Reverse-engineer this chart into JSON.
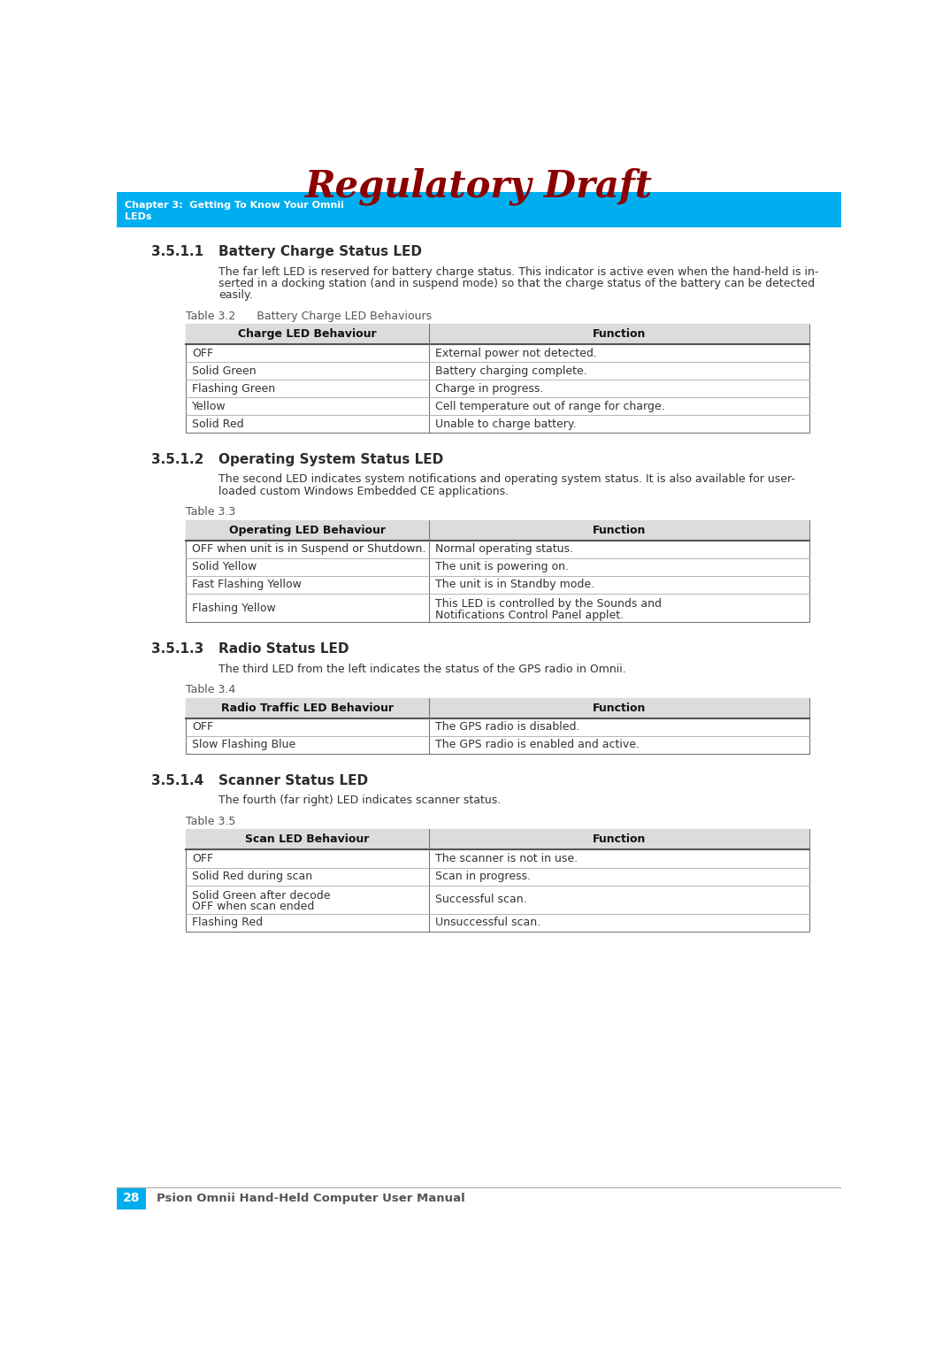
{
  "title": "Regulatory Draft",
  "header_bg": "#00AEEF",
  "header_text_line1": "Chapter 3:  Getting To Know Your Omnii",
  "header_text_line2": "LEDs",
  "header_text_color": "#FFFFFF",
  "footer_bg": "#00AEEF",
  "footer_num": "28",
  "footer_text": "Psion Omnii Hand-Held Computer User Manual",
  "page_bg": "#FFFFFF",
  "sections": [
    {
      "num": "3.5.1.1",
      "title": "Battery Charge Status LED",
      "body": [
        "The far left LED is reserved for battery charge status. This indicator is active even when the hand-held is in-",
        "serted in a docking station (and in suspend mode) so that the charge status of the battery can be detected",
        "easily."
      ],
      "table_label": "Table 3.2      Battery Charge LED Behaviours",
      "table_col1": "Charge LED Behaviour",
      "table_col2": "Function",
      "table_rows": [
        [
          "OFF",
          "External power not detected."
        ],
        [
          "Solid Green",
          "Battery charging complete."
        ],
        [
          "Flashing Green",
          "Charge in progress."
        ],
        [
          "Yellow",
          "Cell temperature out of range for charge."
        ],
        [
          "Solid Red",
          "Unable to charge battery."
        ]
      ]
    },
    {
      "num": "3.5.1.2",
      "title": "Operating System Status LED",
      "body": [
        "The second LED indicates system notifications and operating system status. It is also available for user-",
        "loaded custom Windows Embedded CE applications."
      ],
      "table_label": "Table 3.3",
      "table_col1": "Operating LED Behaviour",
      "table_col2": "Function",
      "table_rows": [
        [
          "OFF when unit is in Suspend or Shutdown.",
          "Normal operating status."
        ],
        [
          "Solid Yellow",
          "The unit is powering on."
        ],
        [
          "Fast Flashing Yellow",
          "The unit is in Standby mode."
        ],
        [
          "Flashing Yellow",
          "This LED is controlled by the Sounds and\nNotifications Control Panel applet."
        ]
      ]
    },
    {
      "num": "3.5.1.3",
      "title": "Radio Status LED",
      "body": [
        "The third LED from the left indicates the status of the GPS radio in Omnii."
      ],
      "table_label": "Table 3.4",
      "table_col1": "Radio Traffic LED Behaviour",
      "table_col2": "Function",
      "table_rows": [
        [
          "OFF",
          "The GPS radio is disabled."
        ],
        [
          "Slow Flashing Blue",
          "The GPS radio is enabled and active."
        ]
      ]
    },
    {
      "num": "3.5.1.4",
      "title": "Scanner Status LED",
      "body": [
        "The fourth (far right) LED indicates scanner status."
      ],
      "table_label": "Table 3.5",
      "table_col1": "Scan LED Behaviour",
      "table_col2": "Function",
      "table_rows": [
        [
          "OFF",
          "The scanner is not in use."
        ],
        [
          "Solid Red during scan",
          "Scan in progress."
        ],
        [
          "Solid Green after decode\nOFF when scan ended",
          "Successful scan."
        ],
        [
          "Flashing Red",
          "Unsuccessful scan."
        ]
      ]
    }
  ]
}
